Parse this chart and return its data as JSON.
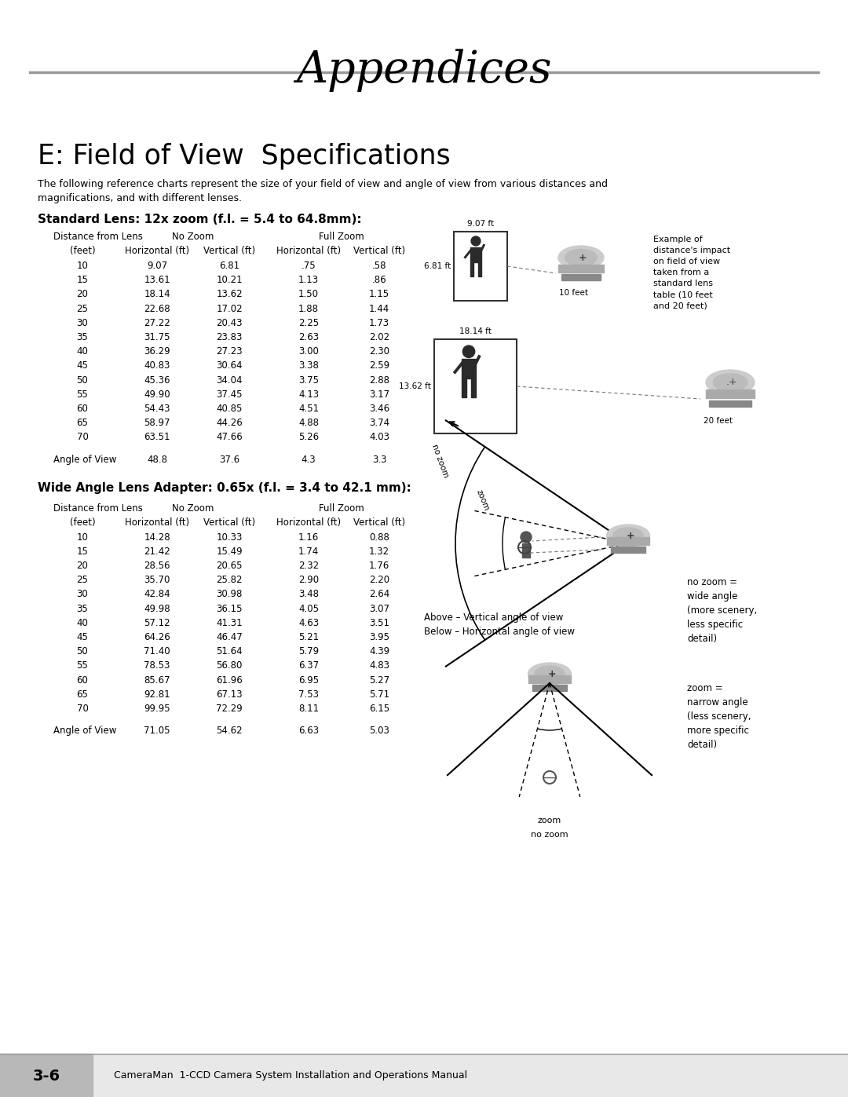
{
  "page_title": "Appendices",
  "section_title": "E: Field of View  Specifications",
  "intro_text": "The following reference charts represent the size of your field of view and angle of view from various distances and\nmagnifications, and with different lenses.",
  "table1_title": "Standard Lens: 12x zoom (f.l. = 5.4 to 64.8mm):",
  "table1_subheaders": [
    "(feet)",
    "Horizontal (ft)",
    "Vertical (ft)",
    "Horizontal (ft)",
    "Vertical (ft)"
  ],
  "table1_data": [
    [
      10,
      9.07,
      6.81,
      0.75,
      0.58
    ],
    [
      15,
      13.61,
      10.21,
      1.13,
      0.86
    ],
    [
      20,
      18.14,
      13.62,
      1.5,
      1.15
    ],
    [
      25,
      22.68,
      17.02,
      1.88,
      1.44
    ],
    [
      30,
      27.22,
      20.43,
      2.25,
      1.73
    ],
    [
      35,
      31.75,
      23.83,
      2.63,
      2.02
    ],
    [
      40,
      36.29,
      27.23,
      3.0,
      2.3
    ],
    [
      45,
      40.83,
      30.64,
      3.38,
      2.59
    ],
    [
      50,
      45.36,
      34.04,
      3.75,
      2.88
    ],
    [
      55,
      49.9,
      37.45,
      4.13,
      3.17
    ],
    [
      60,
      54.43,
      40.85,
      4.51,
      3.46
    ],
    [
      65,
      58.97,
      44.26,
      4.88,
      3.74
    ],
    [
      70,
      63.51,
      47.66,
      5.26,
      4.03
    ]
  ],
  "table1_angle": [
    "Angle of View",
    "48.8",
    "37.6",
    "4.3",
    "3.3"
  ],
  "table2_title": "Wide Angle Lens Adapter: 0.65x (f.l. = 3.4 to 42.1 mm):",
  "table2_subheaders": [
    "(feet)",
    "Horizontal (ft)",
    "Vertical (ft)",
    "Horizontal (ft)",
    "Vertical (ft)"
  ],
  "table2_data": [
    [
      10,
      14.28,
      10.33,
      1.16,
      0.88
    ],
    [
      15,
      21.42,
      15.49,
      1.74,
      1.32
    ],
    [
      20,
      28.56,
      20.65,
      2.32,
      1.76
    ],
    [
      25,
      35.7,
      25.82,
      2.9,
      2.2
    ],
    [
      30,
      42.84,
      30.98,
      3.48,
      2.64
    ],
    [
      35,
      49.98,
      36.15,
      4.05,
      3.07
    ],
    [
      40,
      57.12,
      41.31,
      4.63,
      3.51
    ],
    [
      45,
      64.26,
      46.47,
      5.21,
      3.95
    ],
    [
      50,
      71.4,
      51.64,
      5.79,
      4.39
    ],
    [
      55,
      78.53,
      56.8,
      6.37,
      4.83
    ],
    [
      60,
      85.67,
      61.96,
      6.95,
      5.27
    ],
    [
      65,
      92.81,
      67.13,
      7.53,
      5.71
    ],
    [
      70,
      99.95,
      72.29,
      8.11,
      6.15
    ]
  ],
  "table2_angle": [
    "Angle of View",
    "71.05",
    "54.62",
    "6.63",
    "5.03"
  ],
  "footer_left": "3-6",
  "footer_right": "CameraMan  1-CCD Camera System Installation and Operations Manual",
  "bg_color": "#ffffff",
  "text_color": "#000000"
}
